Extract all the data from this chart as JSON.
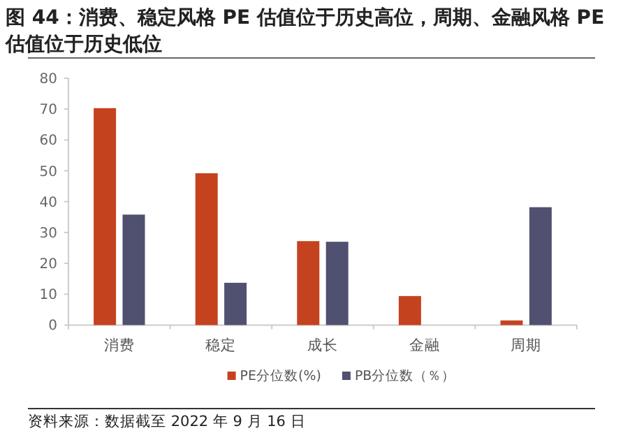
{
  "chart_data": {
    "type": "bar",
    "title": "图 44：消费、稳定风格 PE 估值位于历史高位，周期、金融风格 PE 估值位于历史低位",
    "categories": [
      "消费",
      "稳定",
      "成长",
      "金融",
      "周期"
    ],
    "series": [
      {
        "name": "PE分位数(%)",
        "color": "#c5421f",
        "values": [
          70.3,
          49.2,
          27.2,
          9.4,
          1.5
        ]
      },
      {
        "name": "PB分位数（％）",
        "color": "#505170",
        "values": [
          35.8,
          13.7,
          27.0,
          0,
          38.2
        ]
      }
    ],
    "ylim": [
      0,
      80
    ],
    "yticks": [
      0,
      10,
      20,
      30,
      40,
      50,
      60,
      70,
      80
    ],
    "grid": false,
    "legend": "bottom",
    "annotations": [
      "资料来源：数据截至 2022 年 9 月 16 日"
    ]
  }
}
